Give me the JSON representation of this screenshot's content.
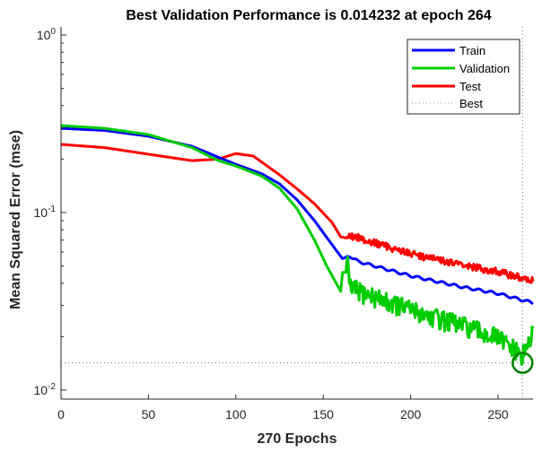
{
  "chart_data": {
    "type": "line",
    "title": "Best Validation Performance is 0.014232 at epoch 264",
    "xlabel": "270 Epochs",
    "ylabel": "Mean Squared Error  (mse)",
    "xlim": [
      0,
      270
    ],
    "ylim": [
      0.0089,
      1
    ],
    "yscale": "log",
    "grid": false,
    "legend_position": "top-right",
    "xticks": [
      0,
      50,
      100,
      150,
      200,
      250
    ],
    "xtick_labels": [
      "0",
      "50",
      "100",
      "150",
      "200",
      "250"
    ],
    "yticks": [
      1,
      0.1,
      0.01
    ],
    "ytick_labels": [
      {
        "base": "10",
        "exp": "0"
      },
      {
        "base": "10",
        "exp": "-1"
      },
      {
        "base": "10",
        "exp": "-2"
      }
    ],
    "best": {
      "epoch": 264,
      "value": 0.014232,
      "label": "Best"
    },
    "series": [
      {
        "name": "Train",
        "color": "#0000ff",
        "keypoints": [
          [
            0,
            0.298
          ],
          [
            25,
            0.29
          ],
          [
            50,
            0.269
          ],
          [
            75,
            0.236
          ],
          [
            90,
            0.205
          ],
          [
            100,
            0.187
          ],
          [
            115,
            0.165
          ],
          [
            125,
            0.145
          ],
          [
            135,
            0.118
          ],
          [
            145,
            0.09
          ],
          [
            155,
            0.066
          ],
          [
            161,
            0.055
          ],
          [
            165,
            0.057
          ],
          [
            170,
            0.053
          ],
          [
            200,
            0.044
          ],
          [
            230,
            0.038
          ],
          [
            250,
            0.035
          ],
          [
            270,
            0.031
          ]
        ],
        "noise": 0.015
      },
      {
        "name": "Validation",
        "color": "#00cc00",
        "keypoints": [
          [
            0,
            0.309
          ],
          [
            25,
            0.298
          ],
          [
            50,
            0.275
          ],
          [
            75,
            0.232
          ],
          [
            90,
            0.196
          ],
          [
            100,
            0.183
          ],
          [
            115,
            0.16
          ],
          [
            125,
            0.137
          ],
          [
            135,
            0.105
          ],
          [
            145,
            0.07
          ],
          [
            152,
            0.05
          ],
          [
            160,
            0.036
          ],
          [
            161,
            0.046
          ],
          [
            164,
            0.046
          ],
          [
            165,
            0.035
          ],
          [
            170,
            0.033
          ],
          [
            200,
            0.026
          ],
          [
            230,
            0.021
          ],
          [
            250,
            0.018
          ],
          [
            264,
            0.014232
          ],
          [
            270,
            0.019
          ]
        ],
        "noise": 0.13
      },
      {
        "name": "Test",
        "color": "#ff0000",
        "keypoints": [
          [
            0,
            0.242
          ],
          [
            25,
            0.232
          ],
          [
            50,
            0.213
          ],
          [
            75,
            0.196
          ],
          [
            90,
            0.2
          ],
          [
            100,
            0.215
          ],
          [
            110,
            0.208
          ],
          [
            125,
            0.163
          ],
          [
            135,
            0.136
          ],
          [
            145,
            0.112
          ],
          [
            155,
            0.088
          ],
          [
            160,
            0.073
          ],
          [
            163,
            0.072
          ],
          [
            170,
            0.07
          ],
          [
            200,
            0.057
          ],
          [
            230,
            0.049
          ],
          [
            250,
            0.045
          ],
          [
            270,
            0.04
          ]
        ],
        "noise": 0.06
      }
    ]
  }
}
